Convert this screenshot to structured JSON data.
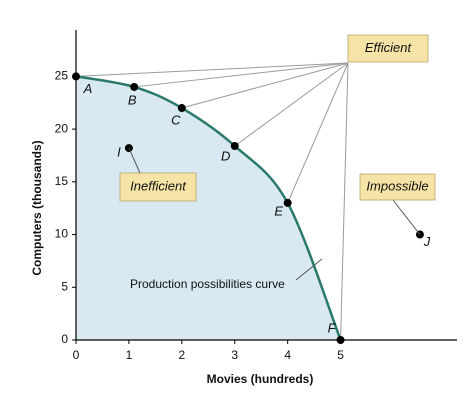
{
  "chart_data": {
    "type": "line",
    "x_label": "Movies (hundreds)",
    "y_label": "Computers (thousands)",
    "xlim": [
      0,
      7.2
    ],
    "ylim": [
      0,
      29.4
    ],
    "xticks": [
      0,
      1,
      2,
      3,
      4,
      5
    ],
    "yticks": [
      0,
      5,
      10,
      15,
      20,
      25
    ],
    "series": [
      {
        "name": "Production possibilities curve",
        "color": "#2a7a6a",
        "fill": "#d8e9f1",
        "x": [
          0,
          1.1,
          2,
          3,
          4,
          5
        ],
        "values": [
          25,
          24,
          22,
          18.4,
          13,
          0
        ],
        "point_labels": [
          "A",
          "B",
          "C",
          "D",
          "E",
          "F"
        ]
      }
    ],
    "points": [
      {
        "label": "I",
        "x": 1,
        "y": 18.2
      },
      {
        "label": "J",
        "x": 6.5,
        "y": 10
      }
    ],
    "efficient_label": "Efficient",
    "inefficient_label": "Inefficient",
    "impossible_label": "Impossible",
    "box_color": "#f6e3a6"
  }
}
